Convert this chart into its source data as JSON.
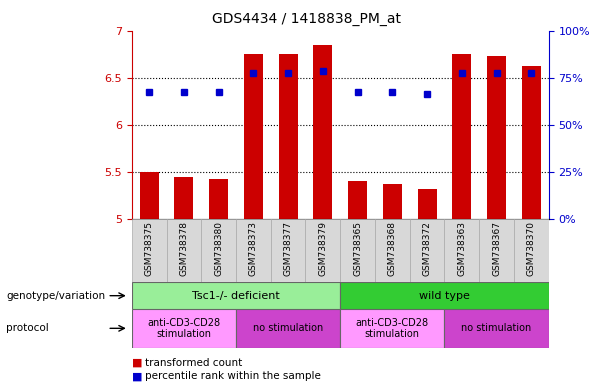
{
  "title": "GDS4434 / 1418838_PM_at",
  "samples": [
    "GSM738375",
    "GSM738378",
    "GSM738380",
    "GSM738373",
    "GSM738377",
    "GSM738379",
    "GSM738365",
    "GSM738368",
    "GSM738372",
    "GSM738363",
    "GSM738367",
    "GSM738370"
  ],
  "bar_values": [
    5.5,
    5.45,
    5.42,
    6.75,
    6.75,
    6.85,
    5.4,
    5.37,
    5.32,
    6.75,
    6.73,
    6.62
  ],
  "dot_values": [
    6.35,
    6.35,
    6.35,
    6.55,
    6.55,
    6.57,
    6.35,
    6.35,
    6.33,
    6.55,
    6.55,
    6.55
  ],
  "bar_color": "#cc0000",
  "dot_color": "#0000cc",
  "ylim_left": [
    5.0,
    7.0
  ],
  "ylim_right": [
    0,
    100
  ],
  "yticks_left": [
    5.0,
    5.5,
    6.0,
    6.5,
    7.0
  ],
  "ytick_labels_left": [
    "5",
    "5.5",
    "6",
    "6.5",
    "7"
  ],
  "yticks_right": [
    0,
    25,
    50,
    75,
    100
  ],
  "ytick_labels_right": [
    "0%",
    "25%",
    "50%",
    "75%",
    "100%"
  ],
  "hlines": [
    5.5,
    6.0,
    6.5
  ],
  "bar_bottom": 5.0,
  "genotype_groups": [
    {
      "label": "Tsc1-/- deficient",
      "start": 0,
      "end": 6,
      "color": "#99ee99"
    },
    {
      "label": "wild type",
      "start": 6,
      "end": 12,
      "color": "#33cc33"
    }
  ],
  "protocol_groups": [
    {
      "label": "anti-CD3-CD28\nstimulation",
      "start": 0,
      "end": 3,
      "color": "#ff99ff"
    },
    {
      "label": "no stimulation",
      "start": 3,
      "end": 6,
      "color": "#cc44cc"
    },
    {
      "label": "anti-CD3-CD28\nstimulation",
      "start": 6,
      "end": 9,
      "color": "#ff99ff"
    },
    {
      "label": "no stimulation",
      "start": 9,
      "end": 12,
      "color": "#cc44cc"
    }
  ],
  "legend_bar_label": "transformed count",
  "legend_dot_label": "percentile rank within the sample",
  "genotype_row_label": "genotype/variation",
  "protocol_row_label": "protocol",
  "left_axis_color": "#cc0000",
  "right_axis_color": "#0000cc",
  "tick_label_color_left": "#cc0000",
  "tick_label_color_right": "#0000cc",
  "xtick_bg_color": "#d8d8d8",
  "xtick_border_color": "#aaaaaa"
}
